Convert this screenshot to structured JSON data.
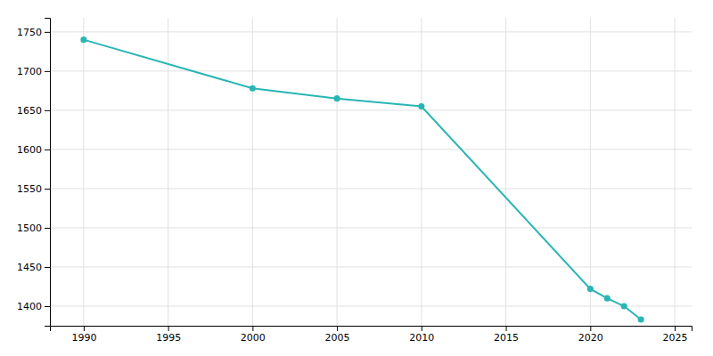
{
  "chart_data": {
    "type": "line",
    "x": [
      1990,
      2000,
      2005,
      2010,
      2020,
      2021,
      2022,
      2023
    ],
    "values": [
      1740,
      1678,
      1665,
      1655,
      1422,
      1410,
      1400,
      1383
    ],
    "color": "#2ab5b5",
    "marker": "circle",
    "xlim": [
      1988,
      2026
    ],
    "ylim": [
      1375,
      1768
    ],
    "xticks": [
      1990,
      1995,
      2000,
      2005,
      2010,
      2015,
      2020,
      2025
    ],
    "yticks": [
      1400,
      1450,
      1500,
      1550,
      1600,
      1650,
      1700,
      1750
    ],
    "grid": true
  }
}
